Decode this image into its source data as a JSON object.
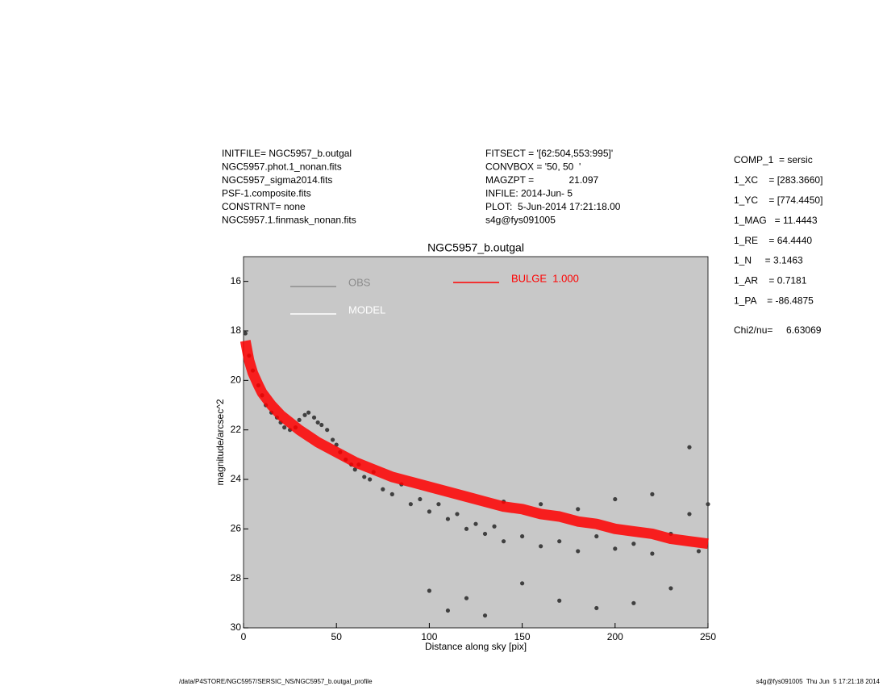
{
  "header": {
    "left": [
      "INITFILE= NGC5957_b.outgal",
      "NGC5957.phot.1_nonan.fits",
      "NGC5957_sigma2014.fits",
      "PSF-1.composite.fits",
      "CONSTRNT= none",
      "NGC5957.1.finmask_nonan.fits"
    ],
    "middle": [
      "FITSECT = '[62:504,553:995]'",
      "CONVBOX = '50, 50  '",
      "MAGZPT =             21.097",
      "INFILE: 2014-Jun- 5",
      "PLOT:  5-Jun-2014 17:21:18.00",
      "s4g@fys091005"
    ],
    "right": [
      "COMP_1  = sersic",
      "1_XC    = [283.3660]",
      "1_YC    = [774.4450]",
      "1_MAG   = 11.4443",
      "1_RE    = 64.4440",
      "1_N     = 3.1463",
      "1_AR    = 0.7181",
      "1_PA    = -86.4875"
    ],
    "chi2": "Chi2/nu=     6.63069"
  },
  "footer": {
    "left": "/data/P4STORE/NGC5957/SERSIC_NS/NGC5957_b.outgal_profile",
    "right": "s4g@fys091005  Thu Jun  5 17:21:18 2014"
  },
  "chart_data": {
    "type": "scatter",
    "title": "NGC5957_b.outgal",
    "x_label": "Distance along sky [pix]",
    "y_label": "magnitude/arcsec^2",
    "xlim": [
      0,
      250
    ],
    "xticks": [
      0,
      50,
      100,
      150,
      200,
      250
    ],
    "ylim": [
      30,
      15
    ],
    "yticks": [
      16,
      18,
      20,
      22,
      24,
      26,
      28,
      30
    ],
    "background": "#c8c8c8",
    "legend": [
      {
        "name": "OBS",
        "color": "#8c8c8c"
      },
      {
        "name": "MODEL",
        "color": "#ffffff"
      },
      {
        "name": "BULGE  1.000",
        "color": "#ff0000"
      }
    ],
    "series": [
      {
        "color": "#404040",
        "mark": "points",
        "x": [
          1,
          3,
          5,
          8,
          10,
          12,
          15,
          18,
          20,
          22,
          25,
          28,
          30,
          33,
          35,
          38,
          40,
          42,
          45,
          48,
          50,
          52,
          55,
          58,
          60,
          62,
          65,
          68,
          70,
          75,
          80,
          85,
          90,
          95,
          100,
          100,
          105,
          110,
          110,
          115,
          120,
          120,
          125,
          130,
          130,
          135,
          140,
          140,
          150,
          150,
          160,
          160,
          170,
          170,
          180,
          180,
          190,
          190,
          200,
          200,
          210,
          210,
          220,
          220,
          230,
          230,
          240,
          240,
          245,
          250
        ],
        "values": [
          18.1,
          19.0,
          19.6,
          20.2,
          20.6,
          21.0,
          21.3,
          21.5,
          21.7,
          21.9,
          22.0,
          21.9,
          21.6,
          21.4,
          21.3,
          21.5,
          21.7,
          21.8,
          22.0,
          22.4,
          22.6,
          22.9,
          23.2,
          23.4,
          23.6,
          23.4,
          23.9,
          24.0,
          23.7,
          24.4,
          24.6,
          24.2,
          25.0,
          24.8,
          25.3,
          28.5,
          25.0,
          25.6,
          29.3,
          25.4,
          26.0,
          28.8,
          25.8,
          26.2,
          29.5,
          25.9,
          26.5,
          24.9,
          26.3,
          28.2,
          26.7,
          25.0,
          26.5,
          28.9,
          26.9,
          25.2,
          26.3,
          29.2,
          26.8,
          24.8,
          26.6,
          29.0,
          27.0,
          24.6,
          26.2,
          28.4,
          25.4,
          22.7,
          26.9,
          25.0
        ]
      },
      {
        "color": "#ff0000",
        "mark": "band",
        "x": [
          1,
          3,
          5,
          8,
          10,
          15,
          20,
          25,
          30,
          40,
          50,
          60,
          70,
          80,
          90,
          100,
          110,
          120,
          130,
          140,
          150,
          160,
          170,
          180,
          190,
          200,
          210,
          220,
          230,
          240,
          250
        ],
        "values": [
          18.4,
          19.2,
          19.7,
          20.2,
          20.5,
          21.0,
          21.4,
          21.7,
          22.0,
          22.5,
          22.9,
          23.3,
          23.6,
          23.9,
          24.1,
          24.3,
          24.5,
          24.7,
          24.9,
          25.1,
          25.2,
          25.4,
          25.5,
          25.7,
          25.8,
          26.0,
          26.1,
          26.2,
          26.4,
          26.5,
          26.6
        ]
      }
    ]
  }
}
